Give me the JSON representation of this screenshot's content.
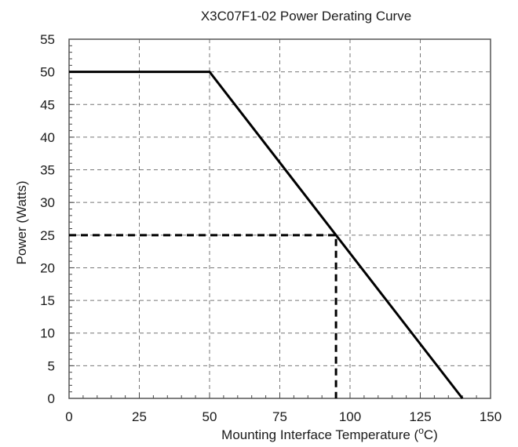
{
  "chart_data": {
    "type": "line",
    "title": "X3C07F1-02 Power Derating Curve",
    "xlabel_main": "Mounting Interface Temperature (",
    "xlabel_sup": "o",
    "xlabel_unit": "C)",
    "ylabel": "Power (Watts)",
    "xlim": [
      0,
      150
    ],
    "ylim": [
      0,
      55
    ],
    "x_ticks": [
      0,
      25,
      50,
      75,
      100,
      125,
      150
    ],
    "y_ticks": [
      0,
      5,
      10,
      15,
      20,
      25,
      30,
      35,
      40,
      45,
      50,
      55
    ],
    "x_minor_step": 5,
    "y_minor_step": 1,
    "grid": true,
    "series": [
      {
        "x": [
          0,
          50,
          140
        ],
        "y": [
          50,
          50,
          0
        ],
        "style": "solid"
      }
    ],
    "reference_lines": [
      {
        "x": [
          0,
          95,
          95
        ],
        "y": [
          25,
          25,
          0
        ],
        "style": "dashed"
      }
    ]
  }
}
